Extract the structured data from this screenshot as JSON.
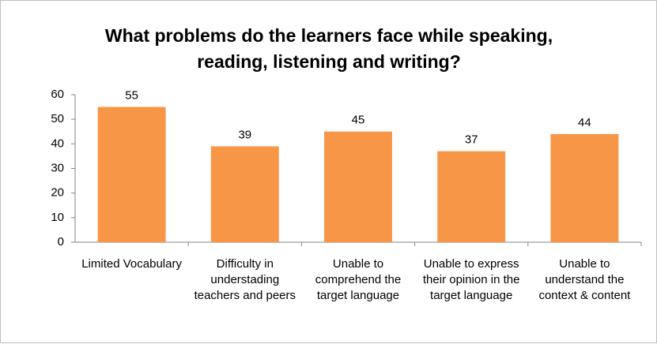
{
  "chart_data": {
    "type": "bar",
    "title": "What problems do the learners face while speaking, reading, listening and writing?",
    "categories": [
      "Limited Vocabulary",
      "Difficulty in understading teachers and peers",
      "Unable to comprehend the target language",
      "Unable to express their opinion in the target language",
      "Unable to understand the context & content"
    ],
    "values": [
      55,
      39,
      45,
      37,
      44
    ],
    "color": "#f79646",
    "ylim": [
      0,
      60
    ],
    "yticks": [
      0,
      10,
      20,
      30,
      40,
      50,
      60
    ],
    "grid": false
  }
}
